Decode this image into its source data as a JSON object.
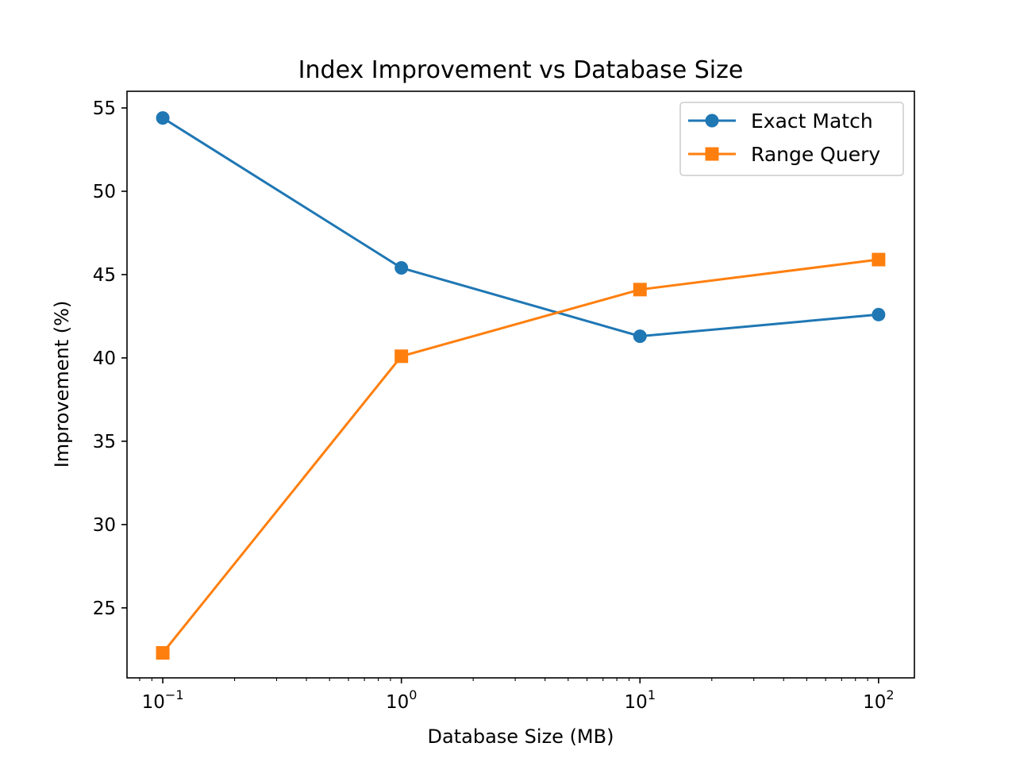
{
  "chart_data": {
    "type": "line",
    "title": "Index Improvement vs Database Size",
    "xlabel": "Database Size (MB)",
    "ylabel": "Improvement (%)",
    "xscale": "log",
    "x": [
      0.1,
      1,
      10,
      100
    ],
    "xlim": [
      0.0708,
      141.3
    ],
    "ylim": [
      20.8,
      56.0
    ],
    "xticks": [
      {
        "value": 0.1,
        "base": "10",
        "exp": "−1"
      },
      {
        "value": 1,
        "base": "10",
        "exp": "0"
      },
      {
        "value": 10,
        "base": "10",
        "exp": "1"
      },
      {
        "value": 100,
        "base": "10",
        "exp": "2"
      }
    ],
    "yticks": [
      25,
      30,
      35,
      40,
      45,
      50,
      55
    ],
    "grid": false,
    "legend_position": "top-right",
    "series": [
      {
        "name": "Exact Match",
        "color": "#1f77b4",
        "marker": "circle",
        "values": [
          54.4,
          45.4,
          41.3,
          42.6
        ]
      },
      {
        "name": "Range Query",
        "color": "#ff7f0e",
        "marker": "square",
        "values": [
          22.3,
          40.1,
          44.1,
          45.9
        ]
      }
    ]
  }
}
